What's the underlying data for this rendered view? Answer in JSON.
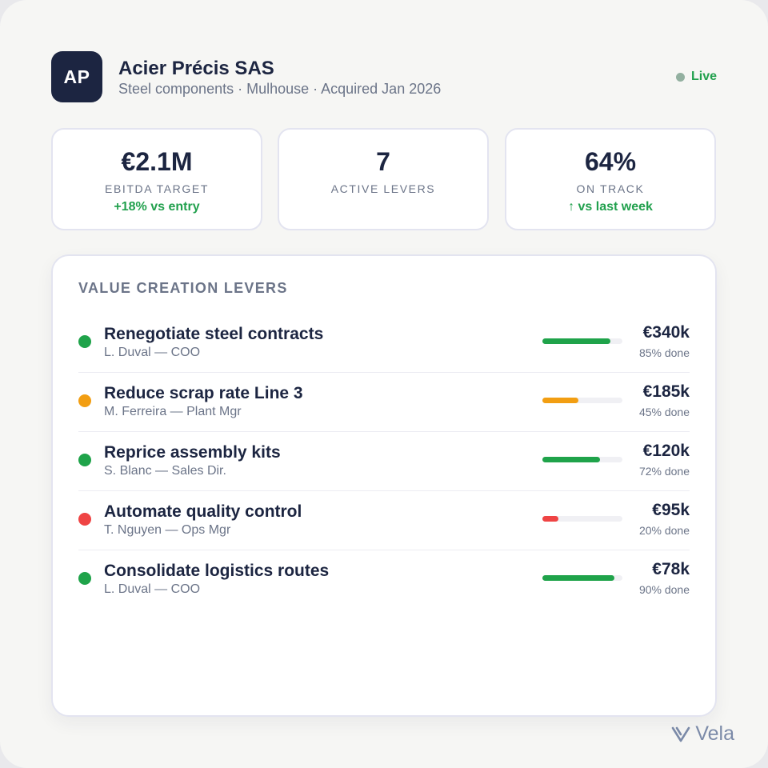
{
  "company": {
    "initials": "AP",
    "name": "Acier Précis SAS",
    "subtitle": "Steel components · Mulhouse · Acquired Jan 2026",
    "status": "Live"
  },
  "kpis": [
    {
      "value": "€2.1M",
      "label": "EBITDA TARGET",
      "delta": "+18% vs entry"
    },
    {
      "value": "7",
      "label": "ACTIVE LEVERS",
      "delta": ""
    },
    {
      "value": "64%",
      "label": "ON TRACK",
      "delta": "↑ vs last week"
    }
  ],
  "levers_panel": {
    "title": "VALUE CREATION LEVERS",
    "items": [
      {
        "name": "Renegotiate steel contracts",
        "owner": "L. Duval — COO",
        "amount": "€340k",
        "progress_text": "85% done",
        "progress": 0.85,
        "color": "#1fa34a"
      },
      {
        "name": "Reduce scrap rate Line 3",
        "owner": "M. Ferreira — Plant Mgr",
        "amount": "€185k",
        "progress_text": "45% done",
        "progress": 0.45,
        "color": "#f29e12"
      },
      {
        "name": "Reprice assembly kits",
        "owner": "S. Blanc — Sales Dir.",
        "amount": "€120k",
        "progress_text": "72% done",
        "progress": 0.72,
        "color": "#1fa34a"
      },
      {
        "name": "Automate quality control",
        "owner": "T. Nguyen — Ops Mgr",
        "amount": "€95k",
        "progress_text": "20% done",
        "progress": 0.2,
        "color": "#ef4444"
      },
      {
        "name": "Consolidate logistics routes",
        "owner": "L. Duval — COO",
        "amount": "€78k",
        "progress_text": "90% done",
        "progress": 0.9,
        "color": "#1fa34a"
      }
    ]
  },
  "brand": {
    "name": "Vela",
    "icon": "vela-logo-icon"
  }
}
